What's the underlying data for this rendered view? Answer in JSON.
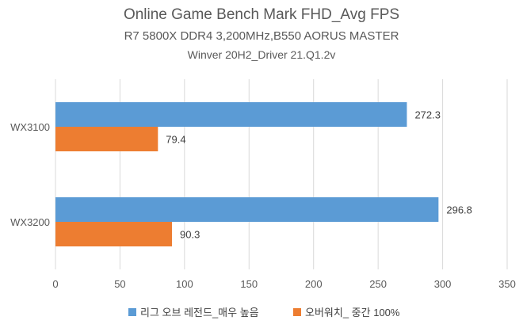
{
  "chart_data": {
    "type": "bar",
    "orientation": "horizontal",
    "title": "Online Game Bench Mark FHD_Avg FPS",
    "subtitles": [
      "R7 5800X DDR4 3,200MHz,B550 AORUS MASTER",
      "Winver 20H2_Driver 21.Q1.2v"
    ],
    "categories": [
      "WX3100",
      "WX3200"
    ],
    "series": [
      {
        "name": "리그 오브 레전드_매우 높음",
        "values": [
          272.3,
          296.8
        ],
        "color": "#5B9BD5"
      },
      {
        "name": "오버워치_ 중간 100%",
        "values": [
          79.4,
          90.3
        ],
        "color": "#ED7D31"
      }
    ],
    "xlim": [
      0,
      350
    ],
    "xticks": [
      "0",
      "50",
      "100",
      "150",
      "200",
      "250",
      "300",
      "350"
    ],
    "grid": true,
    "legend": "bottom",
    "data_labels": [
      "272.3",
      "79.4",
      "296.8",
      "90.3"
    ]
  }
}
